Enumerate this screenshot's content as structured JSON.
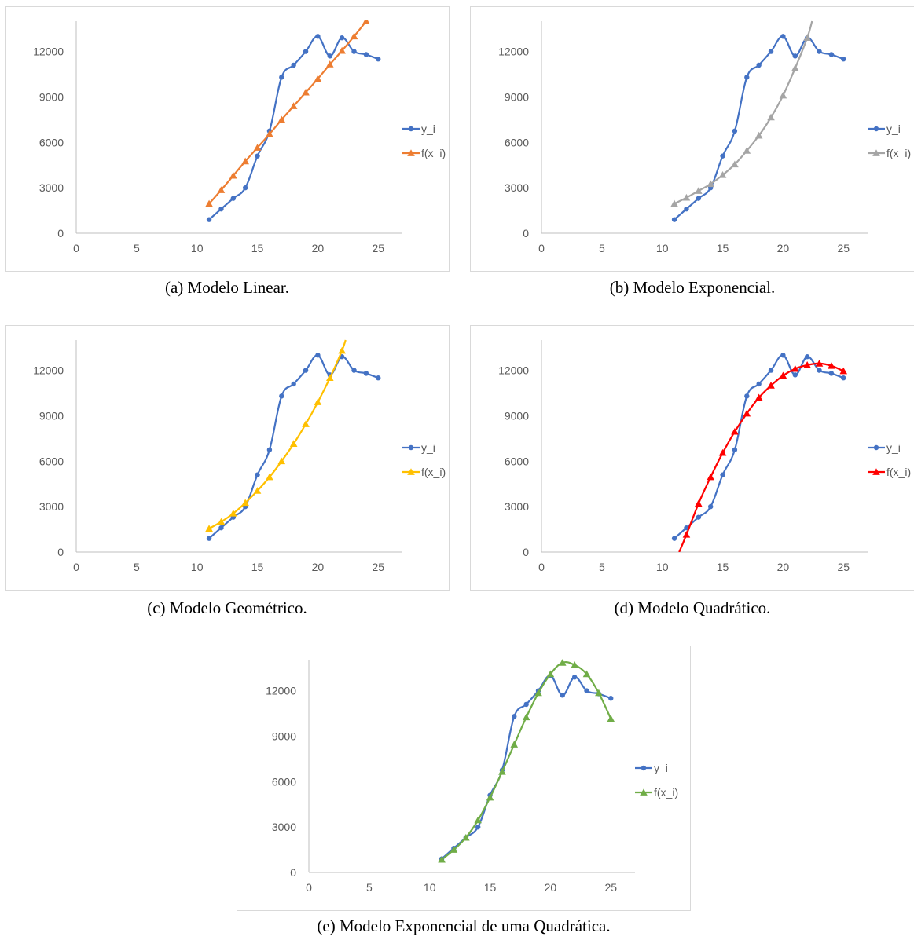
{
  "colors": {
    "y_series": "#4472c4",
    "axis": "#bfbfbf",
    "tick_text": "#595959"
  },
  "panels": [
    {
      "caption": "(a) Modelo Linear.",
      "chart_data": {
        "type": "line",
        "xlim": [
          0,
          27
        ],
        "ylim": [
          0,
          14000
        ],
        "x_ticks": [
          0,
          5,
          10,
          15,
          20,
          25
        ],
        "y_ticks": [
          0,
          3000,
          6000,
          9000,
          12000
        ],
        "grid": false,
        "legend": "right",
        "series": [
          {
            "name": "y_i",
            "marker": "circle",
            "color": "#4472c4",
            "x": [
              11,
              12,
              13,
              14,
              15,
              16,
              17,
              18,
              19,
              20,
              21,
              22,
              23,
              24,
              25
            ],
            "y": [
              900,
              1600,
              2300,
              3000,
              5100,
              6750,
              10300,
              11100,
              12000,
              13000,
              11700,
              12900,
              12000,
              11800,
              11500
            ]
          },
          {
            "name": "f(x_i)",
            "marker": "triangle",
            "color": "#ed7d31",
            "x": [
              11,
              12,
              13,
              14,
              15,
              16,
              17,
              18,
              19,
              20,
              21,
              22,
              23,
              24
            ],
            "y": [
              1950,
              2850,
              3800,
              4750,
              5650,
              6550,
              7500,
              8400,
              9300,
              10200,
              11150,
              12050,
              13000,
              14000
            ]
          }
        ]
      }
    },
    {
      "caption": "(b) Modelo Exponencial.",
      "chart_data": {
        "type": "line",
        "xlim": [
          0,
          27
        ],
        "ylim": [
          0,
          14000
        ],
        "x_ticks": [
          0,
          5,
          10,
          15,
          20,
          25
        ],
        "y_ticks": [
          0,
          3000,
          6000,
          9000,
          12000
        ],
        "grid": false,
        "legend": "right",
        "series": [
          {
            "name": "y_i",
            "marker": "circle",
            "color": "#4472c4",
            "x": [
              11,
              12,
              13,
              14,
              15,
              16,
              17,
              18,
              19,
              20,
              21,
              22,
              23,
              24,
              25
            ],
            "y": [
              900,
              1600,
              2300,
              3000,
              5100,
              6750,
              10300,
              11100,
              12000,
              13000,
              11700,
              12900,
              12000,
              11800,
              11500
            ]
          },
          {
            "name": "f(x_i)",
            "marker": "triangle",
            "color": "#a5a5a5",
            "x": [
              11,
              12,
              13,
              14,
              15,
              16,
              17,
              18,
              19,
              20,
              21,
              22,
              22.4
            ],
            "y": [
              1950,
              2350,
              2800,
              3250,
              3850,
              4550,
              5450,
              6450,
              7650,
              9100,
              10900,
              12900,
              14000
            ]
          }
        ]
      }
    },
    {
      "caption": "(c) Modelo Geométrico.",
      "chart_data": {
        "type": "line",
        "xlim": [
          0,
          27
        ],
        "ylim": [
          0,
          14000
        ],
        "x_ticks": [
          0,
          5,
          10,
          15,
          20,
          25
        ],
        "y_ticks": [
          0,
          3000,
          6000,
          9000,
          12000
        ],
        "grid": false,
        "legend": "right",
        "series": [
          {
            "name": "y_i",
            "marker": "circle",
            "color": "#4472c4",
            "x": [
              11,
              12,
              13,
              14,
              15,
              16,
              17,
              18,
              19,
              20,
              21,
              22,
              23,
              24,
              25
            ],
            "y": [
              900,
              1600,
              2300,
              3000,
              5100,
              6750,
              10300,
              11100,
              12000,
              13000,
              11700,
              12900,
              12000,
              11800,
              11500
            ]
          },
          {
            "name": "f(x_i)",
            "marker": "triangle",
            "color": "#ffc000",
            "x": [
              11,
              12,
              13,
              14,
              15,
              16,
              17,
              18,
              19,
              20,
              21,
              22,
              22.3
            ],
            "y": [
              1550,
              2000,
              2550,
              3250,
              4050,
              4950,
              6000,
              7150,
              8450,
              9900,
              11500,
              13300,
              14000
            ]
          }
        ]
      }
    },
    {
      "caption": "(d) Modelo Quadrático.",
      "chart_data": {
        "type": "line",
        "xlim": [
          0,
          27
        ],
        "ylim": [
          0,
          14000
        ],
        "x_ticks": [
          0,
          5,
          10,
          15,
          20,
          25
        ],
        "y_ticks": [
          0,
          3000,
          6000,
          9000,
          12000
        ],
        "grid": false,
        "legend": "right",
        "series": [
          {
            "name": "y_i",
            "marker": "circle",
            "color": "#4472c4",
            "x": [
              11,
              12,
              13,
              14,
              15,
              16,
              17,
              18,
              19,
              20,
              21,
              22,
              23,
              24,
              25
            ],
            "y": [
              900,
              1600,
              2300,
              3000,
              5100,
              6750,
              10300,
              11100,
              12000,
              13000,
              11700,
              12900,
              12000,
              11800,
              11500
            ]
          },
          {
            "name": "f(x_i)",
            "marker": "triangle",
            "color": "#ff0000",
            "x": [
              11.4,
              12,
              13,
              14,
              15,
              16,
              17,
              18,
              19,
              20,
              21,
              22,
              23,
              24,
              25
            ],
            "y": [
              0,
              1150,
              3200,
              4950,
              6550,
              7950,
              9150,
              10200,
              11000,
              11650,
              12100,
              12350,
              12450,
              12300,
              11950
            ]
          }
        ]
      }
    },
    {
      "caption": "(e) Modelo Exponencial de uma Quadrática.",
      "chart_data": {
        "type": "line",
        "xlim": [
          0,
          27
        ],
        "ylim": [
          0,
          14000
        ],
        "x_ticks": [
          0,
          5,
          10,
          15,
          20,
          25
        ],
        "y_ticks": [
          0,
          3000,
          6000,
          9000,
          12000
        ],
        "grid": false,
        "legend": "right",
        "series": [
          {
            "name": "y_i",
            "marker": "circle",
            "color": "#4472c4",
            "x": [
              11,
              12,
              13,
              14,
              15,
              16,
              17,
              18,
              19,
              20,
              21,
              22,
              23,
              24,
              25
            ],
            "y": [
              900,
              1600,
              2300,
              3000,
              5100,
              6750,
              10300,
              11100,
              12000,
              13000,
              11700,
              12900,
              12000,
              11800,
              11500
            ]
          },
          {
            "name": "f(x_i)",
            "marker": "triangle",
            "color": "#70ad47",
            "x": [
              11,
              12,
              13,
              14,
              15,
              16,
              17,
              18,
              19,
              20,
              21,
              22,
              23,
              24,
              25
            ],
            "y": [
              850,
              1500,
              2300,
              3450,
              4950,
              6650,
              8450,
              10250,
              11850,
              13100,
              13850,
              13700,
              13100,
              11850,
              10150
            ]
          }
        ]
      }
    }
  ]
}
